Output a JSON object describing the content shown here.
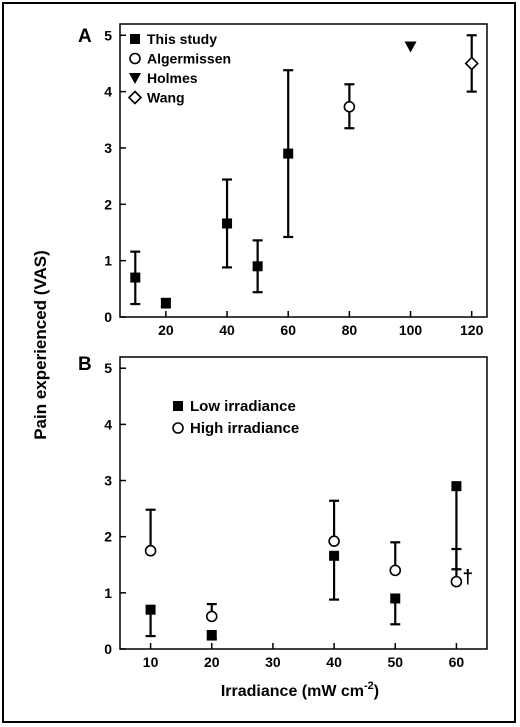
{
  "figure": {
    "shared_ylabel": "Pain experienced (VAS)",
    "colors": {
      "ink": "#000000",
      "background": "#ffffff"
    }
  },
  "chart_data": [
    {
      "panel": "A",
      "type": "scatter",
      "xlim": [
        5,
        125
      ],
      "ylim": [
        0,
        5.2
      ],
      "xticks": [
        20,
        40,
        60,
        80,
        100,
        120
      ],
      "yticks": [
        0,
        1,
        2,
        3,
        4,
        5
      ],
      "xlabel": "",
      "ylabel": "Pain experienced (VAS)",
      "grid": false,
      "legend_position": "top-left",
      "series": [
        {
          "name": "This study",
          "marker": "filled-square",
          "points": [
            {
              "x": 10,
              "y": 0.7,
              "err_lo": 0.47,
              "err_hi": 0.46
            },
            {
              "x": 20,
              "y": 0.25,
              "err_lo": 0.08,
              "err_hi": 0.07
            },
            {
              "x": 40,
              "y": 1.66,
              "err_lo": 0.78,
              "err_hi": 0.78
            },
            {
              "x": 50,
              "y": 0.9,
              "err_lo": 0.46,
              "err_hi": 0.46
            },
            {
              "x": 60,
              "y": 2.9,
              "err_lo": 1.48,
              "err_hi": 1.48
            }
          ]
        },
        {
          "name": "Algermissen",
          "marker": "open-circle",
          "points": [
            {
              "x": 80,
              "y": 3.73,
              "err_lo": 0.38,
              "err_hi": 0.4
            }
          ]
        },
        {
          "name": "Holmes",
          "marker": "filled-triangle-down",
          "points": [
            {
              "x": 100,
              "y": 4.8
            }
          ]
        },
        {
          "name": "Wang",
          "marker": "open-diamond",
          "points": [
            {
              "x": 120,
              "y": 4.5,
              "err_lo": 0.5,
              "err_hi": 0.5
            }
          ]
        }
      ]
    },
    {
      "panel": "B",
      "type": "scatter",
      "xlim": [
        5,
        65
      ],
      "ylim": [
        0,
        5.2
      ],
      "xticks": [
        10,
        20,
        30,
        40,
        50,
        60
      ],
      "yticks": [
        0,
        1,
        2,
        3,
        4,
        5
      ],
      "xlabel": "Irradiance (mW cm",
      "xlabel_superscript": "-2",
      "xlabel_close": ")",
      "ylabel": "Pain experienced (VAS)",
      "grid": false,
      "legend_position": "top-left",
      "annotation": {
        "text": "†",
        "x": 61,
        "y": 1.3
      },
      "series": [
        {
          "name": "Low irradiance",
          "marker": "filled-square",
          "error_side": "lower",
          "points": [
            {
              "x": 10,
              "y": 0.7,
              "err": 0.47
            },
            {
              "x": 20,
              "y": 0.25,
              "err": 0.08
            },
            {
              "x": 40,
              "y": 1.66,
              "err": 0.78
            },
            {
              "x": 50,
              "y": 0.9,
              "err": 0.46
            },
            {
              "x": 60,
              "y": 2.9,
              "err": 1.48
            }
          ]
        },
        {
          "name": "High irradiance",
          "marker": "open-circle",
          "error_side": "upper",
          "points": [
            {
              "x": 10,
              "y": 1.75,
              "err": 0.73
            },
            {
              "x": 20,
              "y": 0.58,
              "err": 0.22
            },
            {
              "x": 40,
              "y": 1.92,
              "err": 0.72
            },
            {
              "x": 50,
              "y": 1.4,
              "err": 0.5
            },
            {
              "x": 60,
              "y": 1.2,
              "err": 0.58
            }
          ]
        }
      ]
    }
  ]
}
